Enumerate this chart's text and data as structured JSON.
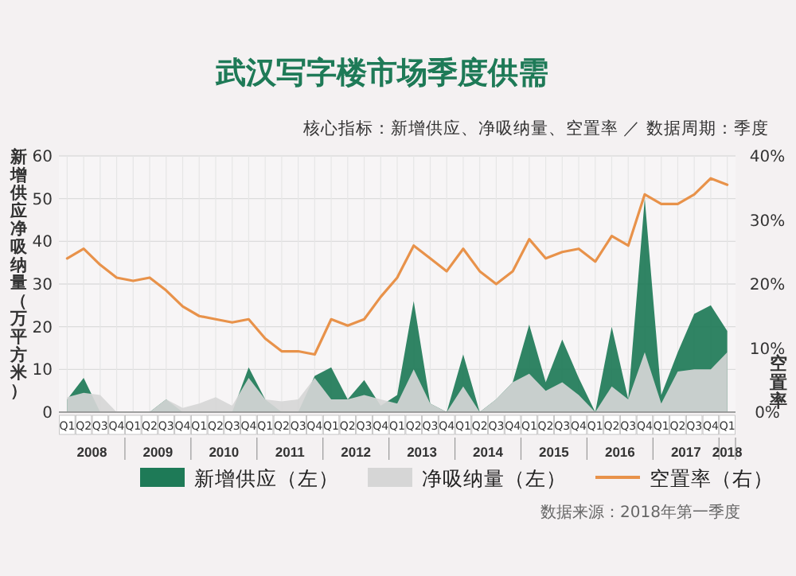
{
  "chart_data": {
    "type": "area",
    "title": "武汉写字楼市场季度供需",
    "subtitle": "核心指标：新增供应、净吸纳量、空置率 ／ 数据周期：季度",
    "ylabel": "新增供应净吸纳量（万平方米）",
    "y2label": "空置率",
    "categories": [
      "Q1",
      "Q2",
      "Q3",
      "Q4",
      "Q1",
      "Q2",
      "Q3",
      "Q4",
      "Q1",
      "Q2",
      "Q3",
      "Q4",
      "Q1",
      "Q2",
      "Q3",
      "Q4",
      "Q1",
      "Q2",
      "Q3",
      "Q4",
      "Q1",
      "Q2",
      "Q3",
      "Q4",
      "Q1",
      "Q2",
      "Q3",
      "Q4",
      "Q1",
      "Q2",
      "Q3",
      "Q4",
      "Q1",
      "Q2",
      "Q3",
      "Q4",
      "Q1",
      "Q2",
      "Q3",
      "Q4",
      "Q1"
    ],
    "series": [
      {
        "name": "新增供应（左）",
        "axis": "y",
        "color": "#1e7a57",
        "values": [
          3,
          8,
          0,
          0,
          0,
          0,
          3,
          0,
          0,
          0,
          0,
          10.5,
          3,
          0,
          0,
          8.5,
          10.5,
          3,
          7.5,
          1.5,
          4,
          26,
          2,
          0,
          13.5,
          0,
          3,
          7,
          20.5,
          7,
          17,
          8,
          0,
          20,
          3,
          50,
          4,
          14,
          23,
          25,
          19
        ]
      },
      {
        "name": "净吸纳量（左）",
        "axis": "y",
        "color": "#d6d6d6",
        "values": [
          3.5,
          4.5,
          4,
          0,
          0,
          0,
          3,
          1,
          2,
          3.5,
          1.5,
          8,
          3,
          2.5,
          3,
          8,
          3,
          3,
          4,
          3,
          2,
          10,
          2,
          0,
          6,
          0,
          3,
          7,
          9,
          5,
          7,
          4,
          0,
          6,
          3,
          14,
          2,
          9.5,
          10,
          10,
          14
        ]
      },
      {
        "name": "空置率（右）",
        "type": "line",
        "axis": "y2",
        "color": "#e8924a",
        "values": [
          24,
          25.5,
          23,
          21,
          20.5,
          21,
          19,
          16.5,
          15,
          14.5,
          14,
          14.5,
          11.5,
          9.5,
          9.5,
          9,
          14.5,
          13.5,
          14.5,
          18,
          21,
          26,
          24,
          22,
          25.5,
          22,
          20,
          22,
          27,
          24,
          25,
          25.5,
          23.5,
          27.5,
          26,
          34,
          32.5,
          32.5,
          34,
          36.5,
          35.5
        ]
      }
    ],
    "ylim": [
      0,
      60
    ],
    "yticks": [
      0,
      10,
      20,
      30,
      40,
      50,
      60
    ],
    "y2lim": [
      0,
      40
    ],
    "y2ticks": [
      {
        "value": 0,
        "label": "0%"
      },
      {
        "value": 10,
        "label": "10%"
      },
      {
        "value": 20,
        "label": "20%"
      },
      {
        "value": 30,
        "label": "30%"
      },
      {
        "value": 40,
        "label": "40%"
      }
    ],
    "grid": true,
    "legend": "bottom",
    "annotations": [
      "2008",
      "2009",
      "2010",
      "2011",
      "2012",
      "2013",
      "2014",
      "2015",
      "2016",
      "2017",
      "2018",
      "数据来源：2018年第一季度"
    ]
  }
}
